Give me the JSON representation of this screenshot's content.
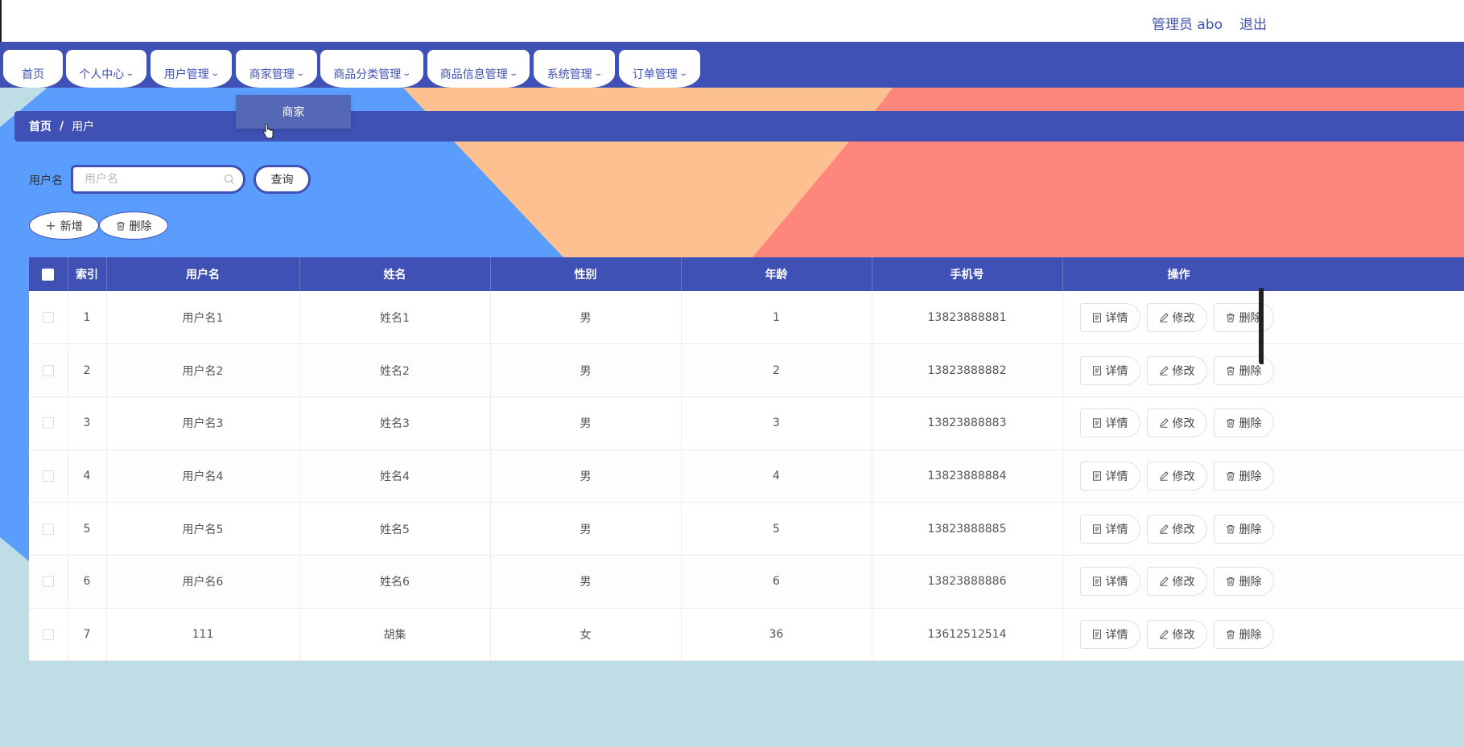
{
  "header": {
    "user_label": "管理员 abo",
    "logout_label": "退出"
  },
  "nav": {
    "items": [
      {
        "label": "首页",
        "has_dropdown": false
      },
      {
        "label": "个人中心",
        "has_dropdown": true
      },
      {
        "label": "用户管理",
        "has_dropdown": true
      },
      {
        "label": "商家管理",
        "has_dropdown": true
      },
      {
        "label": "商品分类管理",
        "has_dropdown": true
      },
      {
        "label": "商品信息管理",
        "has_dropdown": true
      },
      {
        "label": "系统管理",
        "has_dropdown": true
      },
      {
        "label": "订单管理",
        "has_dropdown": true
      }
    ],
    "open_dropdown": {
      "parent": "商家管理",
      "items": [
        "商家"
      ]
    }
  },
  "breadcrumb": {
    "home": "首页",
    "separator": "/",
    "current": "用户"
  },
  "search": {
    "label": "用户名",
    "placeholder": "用户名",
    "value": "",
    "query_label": "查询"
  },
  "actions": {
    "add_label": "新增",
    "delete_label": "删除"
  },
  "table": {
    "columns": [
      "",
      "索引",
      "用户名",
      "姓名",
      "性别",
      "年龄",
      "手机号",
      "操作"
    ],
    "rows": [
      {
        "index": "1",
        "username": "用户名1",
        "name": "姓名1",
        "gender": "男",
        "age": "1",
        "phone": "13823888881"
      },
      {
        "index": "2",
        "username": "用户名2",
        "name": "姓名2",
        "gender": "男",
        "age": "2",
        "phone": "13823888882"
      },
      {
        "index": "3",
        "username": "用户名3",
        "name": "姓名3",
        "gender": "男",
        "age": "3",
        "phone": "13823888883"
      },
      {
        "index": "4",
        "username": "用户名4",
        "name": "姓名4",
        "gender": "男",
        "age": "4",
        "phone": "13823888884"
      },
      {
        "index": "5",
        "username": "用户名5",
        "name": "姓名5",
        "gender": "男",
        "age": "5",
        "phone": "13823888885"
      },
      {
        "index": "6",
        "username": "用户名6",
        "name": "姓名6",
        "gender": "男",
        "age": "6",
        "phone": "13823888886"
      },
      {
        "index": "7",
        "username": "111",
        "name": "胡集",
        "gender": "女",
        "age": "36",
        "phone": "13612512514"
      }
    ],
    "row_actions": {
      "detail": "详情",
      "edit": "修改",
      "delete": "删除"
    }
  },
  "colors": {
    "primary": "#3f51b5",
    "bg_blue": "#5b9dfc",
    "bg_peach": "#fdc191",
    "bg_coral": "#fe867c",
    "bg_teal": "#bfdde5"
  }
}
